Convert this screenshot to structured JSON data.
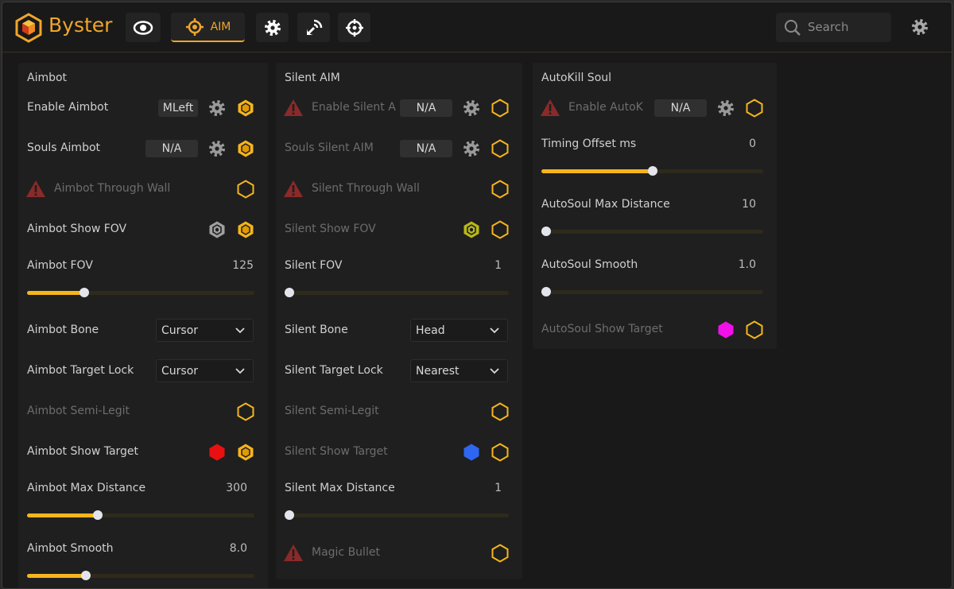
{
  "header": {
    "brand": "Byster",
    "active_tab": "AIM",
    "search_placeholder": "Search"
  },
  "panels": [
    {
      "title": "Aimbot",
      "rows": [
        {
          "kind": "toggle",
          "label": "Enable Aimbot",
          "key": "MLeft",
          "enabled": true,
          "on": true
        },
        {
          "kind": "toggle",
          "label": "Souls Aimbot",
          "key": "N/A",
          "enabled": true,
          "on": true
        },
        {
          "kind": "toggle",
          "label": "Aimbot Through Wall",
          "warning": true,
          "enabled": false,
          "on": false
        },
        {
          "kind": "toggle",
          "label": "Aimbot Show FOV",
          "fov_color": "#a0a0a0",
          "enabled": true,
          "on": true
        },
        {
          "kind": "slider",
          "label": "Aimbot FOV",
          "value": "125"
        },
        {
          "kind": "dropdown",
          "label": "Aimbot Bone",
          "option": "Cursor"
        },
        {
          "kind": "dropdown",
          "label": "Aimbot Target Lock",
          "option": "Cursor"
        },
        {
          "kind": "toggle",
          "label": "Aimbot Semi-Legit",
          "enabled": false,
          "on": false
        },
        {
          "kind": "toggle",
          "label": "Aimbot Show Target",
          "swatch": "#e81010",
          "enabled": true,
          "on": true
        },
        {
          "kind": "slider",
          "label": "Aimbot Max Distance",
          "value": "300"
        },
        {
          "kind": "slider",
          "label": "Aimbot Smooth",
          "value": "8.0"
        }
      ]
    },
    {
      "title": "Silent AIM",
      "rows": [
        {
          "kind": "toggle",
          "label": "Enable Silent A",
          "warning": true,
          "key": "N/A",
          "enabled": false,
          "on": false
        },
        {
          "kind": "toggle",
          "label": "Souls Silent AIM",
          "key": "N/A",
          "enabled": false,
          "on": false
        },
        {
          "kind": "toggle",
          "label": "Silent Through Wall",
          "warning": true,
          "enabled": false,
          "on": false
        },
        {
          "kind": "toggle",
          "label": "Silent Show FOV",
          "fov_color": "#b8b818",
          "enabled": false,
          "on": false
        },
        {
          "kind": "slider",
          "label": "Silent FOV",
          "value": "1"
        },
        {
          "kind": "dropdown",
          "label": "Silent Bone",
          "option": "Head"
        },
        {
          "kind": "dropdown",
          "label": "Silent Target Lock",
          "option": "Nearest"
        },
        {
          "kind": "toggle",
          "label": "Silent Semi-Legit",
          "enabled": false,
          "on": false
        },
        {
          "kind": "toggle",
          "label": "Silent Show Target",
          "swatch": "#2f66f0",
          "enabled": false,
          "on": false
        },
        {
          "kind": "slider",
          "label": "Silent Max Distance",
          "value": "1"
        },
        {
          "kind": "toggle",
          "label": "Magic Bullet",
          "warning": true,
          "enabled": false,
          "on": false
        }
      ]
    },
    {
      "title": "AutoKill Soul",
      "rows": [
        {
          "kind": "toggle",
          "label": "Enable AutoK",
          "warning": true,
          "key": "N/A",
          "enabled": false,
          "on": false
        },
        {
          "kind": "slider",
          "label": "Timing Offset ms",
          "value": "0"
        },
        {
          "kind": "slider",
          "label": "AutoSoul Max Distance",
          "value": "10"
        },
        {
          "kind": "slider",
          "label": "AutoSoul Smooth",
          "value": "1.0"
        },
        {
          "kind": "toggle",
          "label": "AutoSoul Show Target",
          "swatch": "#f010e8",
          "enabled": false,
          "on": false
        }
      ]
    }
  ]
}
